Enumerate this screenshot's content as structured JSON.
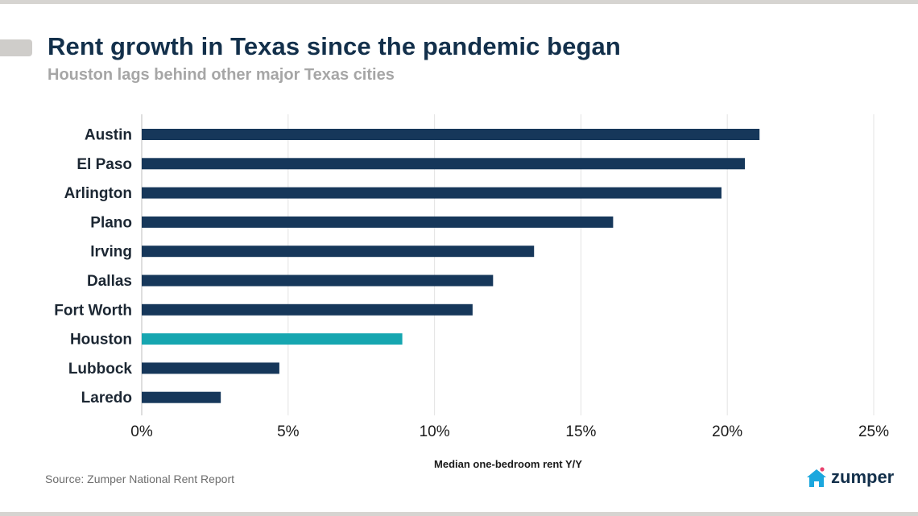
{
  "header": {
    "title": "Rent growth in Texas since the pandemic began",
    "subtitle": "Houston lags behind other major Texas cities"
  },
  "footer": {
    "source": "Source: Zumper National Rent Report",
    "logo_text": "zumper"
  },
  "colors": {
    "bar": "#16375a",
    "highlight": "#16a6b0",
    "text": "#13304b",
    "grid": "#e3e3e3",
    "logo_accent": "#1ba7de",
    "logo_dot": "#e8416d"
  },
  "chart_data": {
    "type": "bar",
    "orientation": "horizontal",
    "categories": [
      "Austin",
      "El Paso",
      "Arlington",
      "Plano",
      "Irving",
      "Dallas",
      "Fort Worth",
      "Houston",
      "Lubbock",
      "Laredo"
    ],
    "values": [
      21.1,
      20.6,
      19.8,
      16.1,
      13.4,
      12.0,
      11.3,
      8.9,
      4.7,
      2.7
    ],
    "highlight": "Houston",
    "unit": "%",
    "xlabel": "Median one-bedroom rent Y/Y",
    "xlim": [
      0,
      25
    ],
    "xticks": [
      0,
      5,
      10,
      15,
      20,
      25
    ],
    "xtick_labels": [
      "0%",
      "5%",
      "10%",
      "15%",
      "20%",
      "25%"
    ],
    "grid": true
  }
}
